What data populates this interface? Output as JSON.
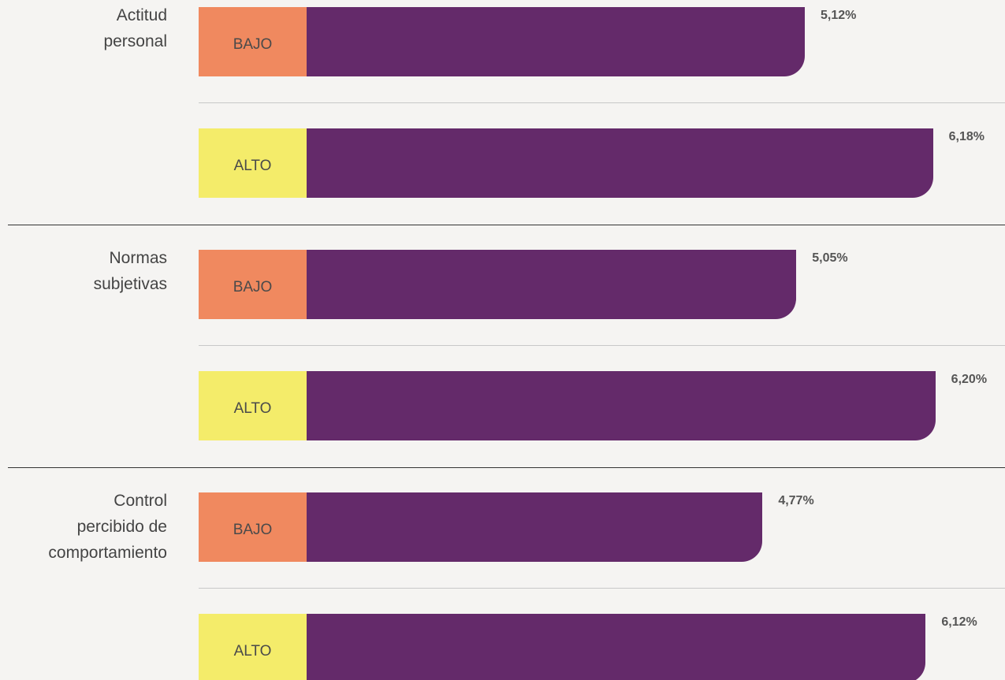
{
  "chart_data": {
    "type": "bar",
    "orientation": "horizontal",
    "categories": [
      "Actitud personal",
      "Normas subjetivas",
      "Control percibido de comportamiento"
    ],
    "bar_color": "#642a6a",
    "xlim": [
      1,
      6.5
    ],
    "series": [
      {
        "name": "BAJO",
        "color": "#f0895f",
        "values": [
          5.12,
          5.05,
          4.77
        ],
        "value_labels": [
          "5,12%",
          "5,05%",
          "4,77%"
        ]
      },
      {
        "name": "ALTO",
        "color": "#f4ec6a",
        "values": [
          6.18,
          6.2,
          6.12
        ],
        "value_labels": [
          "6,18%",
          "6,20%",
          "6,12%"
        ]
      }
    ]
  }
}
